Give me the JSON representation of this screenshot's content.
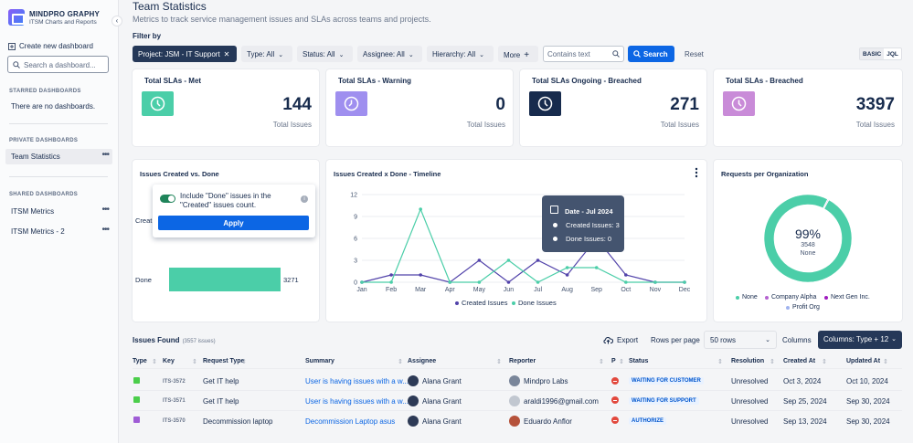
{
  "sidebar": {
    "brand_name": "MINDPRO GRAPHY",
    "brand_sub": "ITSM Charts and Reports",
    "new_dashboard": "Create new dashboard",
    "search_placeholder": "Search a dashboard...",
    "starred_heading": "STARRED DASHBOARDS",
    "starred_empty": "There are no dashboards.",
    "private_heading": "PRIVATE DASHBOARDS",
    "private_items": [
      {
        "label": "Team Statistics"
      }
    ],
    "shared_heading": "SHARED DASHBOARDS",
    "shared_items": [
      {
        "label": "ITSM Metrics"
      },
      {
        "label": "ITSM Metrics - 2"
      }
    ]
  },
  "header": {
    "title": "Team Statistics",
    "subtitle": "Metrics to track service management issues and SLAs across teams and projects."
  },
  "filters": {
    "label": "Filter by",
    "project": "Project: JSM - IT Support",
    "type": "Type: All",
    "status": "Status: All",
    "assignee": "Assignee: All",
    "hierarchy": "Hierarchy: All",
    "more": "More",
    "text_placeholder": "Contains text",
    "search": "Search",
    "reset": "Reset",
    "mode_basic": "BASIC",
    "mode_jql": "JQL"
  },
  "stats": [
    {
      "title": "Total SLAs - Met",
      "value": "144",
      "caption": "Total Issues",
      "color": "#4bcea8"
    },
    {
      "title": "Total SLAs - Warning",
      "value": "0",
      "caption": "Total Issues",
      "color": "#9f8fef"
    },
    {
      "title": "Total SLAs Ongoing - Breached",
      "value": "271",
      "caption": "Total Issues",
      "color": "#172b4d"
    },
    {
      "title": "Total SLAs - Breached",
      "value": "3397",
      "caption": "Total Issues",
      "color": "#c98bd8"
    }
  ],
  "created_vs_done": {
    "title": "Issues Created vs. Done",
    "row_created_label": "Creat",
    "row_done_label": "Done",
    "done_value": "3271",
    "popup_text": "Include \"Done\" issues in the \"Created\" issues count.",
    "popup_apply": "Apply"
  },
  "timeline": {
    "title": "Issues Created x Done - Timeline",
    "tooltip_title": "Date - Jul 2024",
    "tooltip_created": "Created Issues: 3",
    "tooltip_done": "Done Issues: 0",
    "legend_created": "Created Issues",
    "legend_done": "Done Issues"
  },
  "organization": {
    "title": "Requests per Organization",
    "center_pct": "99%",
    "center_count": "3548",
    "center_label": "None",
    "legend": [
      "None",
      "Company Alpha",
      "Next Gen Inc.",
      "Profit Org"
    ]
  },
  "issues": {
    "title": "Issues Found",
    "count": "(3557 issues)",
    "export": "Export",
    "rows_per_page_label": "Rows per page",
    "rows_per_page_value": "50 rows",
    "columns_label": "Columns",
    "columns_value": "Columns: Type + 12",
    "headers": [
      "Type",
      "Key",
      "Request Type",
      "Summary",
      "Assignee",
      "Reporter",
      "P",
      "Status",
      "Resolution",
      "Created At",
      "Updated At"
    ],
    "rows": [
      {
        "key": "ITS-3572",
        "request_type": "Get IT help",
        "summary": "User is having issues with a w...",
        "assignee": "Alana Grant",
        "reporter": "Mindpro Labs",
        "status": "WAITING FOR CUSTOMER",
        "resolution": "Unresolved",
        "created": "Oct 3, 2024",
        "updated": "Oct 10, 2024"
      },
      {
        "key": "ITS-3571",
        "request_type": "Get IT help",
        "summary": "User is having issues with a w...",
        "assignee": "Alana Grant",
        "reporter": "araldi1996@gmail.com",
        "status": "WAITING FOR SUPPORT",
        "resolution": "Unresolved",
        "created": "Sep 25, 2024",
        "updated": "Sep 30, 2024"
      },
      {
        "key": "ITS-3570",
        "request_type": "Decommission laptop",
        "summary": "Decommission Laptop asus",
        "assignee": "Alana Grant",
        "reporter": "Eduardo Anflor",
        "status": "AUTHORIZE",
        "resolution": "Unresolved",
        "created": "Sep 13, 2024",
        "updated": "Sep 30, 2024"
      }
    ]
  },
  "chart_data": [
    {
      "type": "bar",
      "title": "Issues Created vs. Done",
      "categories": [
        "Created",
        "Done"
      ],
      "values": [
        null,
        3271
      ]
    },
    {
      "type": "line",
      "title": "Issues Created x Done - Timeline",
      "x": [
        "Jan",
        "Feb",
        "Mar",
        "Apr",
        "May",
        "Jun",
        "Jul",
        "Aug",
        "Sep",
        "Oct",
        "Nov",
        "Dec"
      ],
      "yticks": [
        0,
        3,
        6,
        9,
        12
      ],
      "ylim": [
        0,
        12
      ],
      "series": [
        {
          "name": "Created Issues",
          "color": "#5243aa",
          "values": [
            0,
            1,
            1,
            0,
            3,
            0,
            3,
            1,
            6,
            1,
            0,
            0
          ]
        },
        {
          "name": "Done Issues",
          "color": "#4bcea8",
          "values": [
            0,
            0,
            10,
            0,
            0,
            3,
            0,
            2,
            2,
            0,
            0,
            0
          ]
        }
      ]
    },
    {
      "type": "pie",
      "title": "Requests per Organization",
      "labels": [
        "None",
        "Company Alpha",
        "Next Gen Inc.",
        "Profit Org"
      ],
      "values": [
        3548,
        6,
        10,
        4
      ],
      "colors": [
        "#4bcea8",
        "#b563d0",
        "#9f1cbf",
        "#9fb3ef"
      ]
    }
  ]
}
